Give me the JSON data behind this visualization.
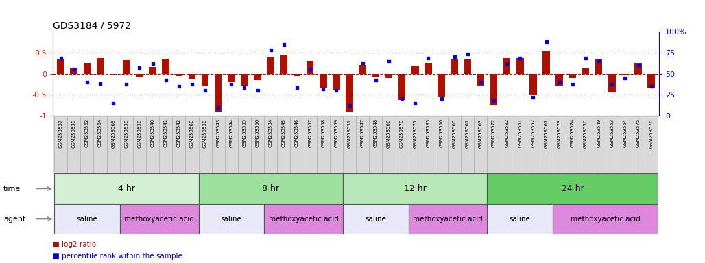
{
  "title": "GDS3184 / 5972",
  "samples": [
    "GSM253537",
    "GSM253539",
    "GSM253562",
    "GSM253564",
    "GSM253569",
    "GSM253533",
    "GSM253538",
    "GSM253540",
    "GSM253541",
    "GSM253542",
    "GSM253568",
    "GSM253530",
    "GSM253543",
    "GSM253544",
    "GSM253555",
    "GSM253556",
    "GSM253534",
    "GSM253545",
    "GSM253546",
    "GSM253557",
    "GSM253558",
    "GSM253559",
    "GSM253531",
    "GSM253547",
    "GSM253548",
    "GSM253566",
    "GSM253570",
    "GSM253571",
    "GSM253535",
    "GSM253550",
    "GSM253560",
    "GSM253561",
    "GSM253563",
    "GSM253572",
    "GSM253532",
    "GSM253551",
    "GSM253552",
    "GSM253567",
    "GSM253573",
    "GSM253574",
    "GSM253536",
    "GSM253549",
    "GSM253553",
    "GSM253554",
    "GSM253575",
    "GSM253576"
  ],
  "log2_ratio": [
    0.35,
    0.12,
    0.25,
    0.38,
    -0.02,
    0.33,
    -0.08,
    0.15,
    0.35,
    -0.05,
    -0.12,
    -0.3,
    -0.9,
    -0.2,
    -0.28,
    -0.15,
    0.4,
    0.45,
    -0.05,
    0.3,
    -0.35,
    -0.4,
    -0.92,
    0.2,
    -0.08,
    -0.1,
    -0.62,
    0.18,
    0.25,
    -0.55,
    0.35,
    0.35,
    -0.3,
    -0.75,
    0.38,
    0.36,
    -0.5,
    0.55,
    -0.28,
    -0.1,
    0.12,
    0.35,
    -0.45,
    -0.02,
    0.25,
    -0.35
  ],
  "percentile": [
    68,
    55,
    40,
    38,
    15,
    37,
    57,
    62,
    42,
    35,
    37,
    30,
    10,
    37,
    33,
    30,
    78,
    85,
    33,
    55,
    32,
    30,
    12,
    63,
    42,
    65,
    20,
    15,
    68,
    20,
    70,
    73,
    40,
    18,
    62,
    68,
    22,
    88,
    40,
    37,
    68,
    65,
    37,
    45,
    60,
    35
  ],
  "time_groups": [
    {
      "label": "4 hr",
      "start": 0,
      "end": 11,
      "color": "#d4f0d4"
    },
    {
      "label": "8 hr",
      "start": 11,
      "end": 22,
      "color": "#9ee09e"
    },
    {
      "label": "12 hr",
      "start": 22,
      "end": 33,
      "color": "#b8e8b8"
    },
    {
      "label": "24 hr",
      "start": 33,
      "end": 46,
      "color": "#66cc66"
    }
  ],
  "agent_groups": [
    {
      "label": "saline",
      "start": 0,
      "end": 5,
      "color": "#e8e8f8"
    },
    {
      "label": "methoxyacetic acid",
      "start": 5,
      "end": 11,
      "color": "#dd88dd"
    },
    {
      "label": "saline",
      "start": 11,
      "end": 16,
      "color": "#e8e8f8"
    },
    {
      "label": "methoxyacetic acid",
      "start": 16,
      "end": 22,
      "color": "#dd88dd"
    },
    {
      "label": "saline",
      "start": 22,
      "end": 27,
      "color": "#e8e8f8"
    },
    {
      "label": "methoxyacetic acid",
      "start": 27,
      "end": 33,
      "color": "#dd88dd"
    },
    {
      "label": "saline",
      "start": 33,
      "end": 38,
      "color": "#e8e8f8"
    },
    {
      "label": "methoxyacetic acid",
      "start": 38,
      "end": 46,
      "color": "#dd88dd"
    }
  ],
  "bar_color": "#aa1100",
  "dot_color": "#0000cc",
  "zero_line_color": "#cc0000",
  "yticks_left": [
    -1,
    -0.5,
    0,
    0.5
  ],
  "ytick_labels_left": [
    "-1",
    "-0.5",
    "0",
    "0.5"
  ],
  "yticks_right": [
    0,
    25,
    50,
    75,
    100
  ],
  "ytick_labels_right": [
    "0",
    "25",
    "50",
    "75",
    "100%"
  ],
  "legend_log2": "log2 ratio",
  "legend_pct": "percentile rank within the sample",
  "sample_box_color": "#d8d8d8",
  "background_color": "#ffffff"
}
